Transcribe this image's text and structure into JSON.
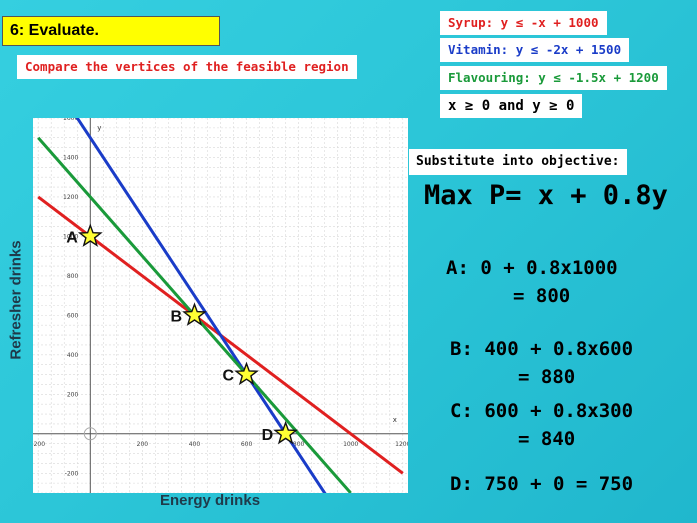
{
  "slide": {
    "title": "6: Evaluate.",
    "subtitle": "Compare the vertices of the feasible region"
  },
  "constraints": {
    "syrup": "Syrup:  y ≤ -x + 1000",
    "vitamin": "Vitamin:  y ≤ -2x + 1500",
    "flavouring": "Flavouring:  y ≤ -1.5x + 1200",
    "nonneg": "x ≥ 0 and y ≥ 0",
    "colors": {
      "syrup": "#e02020",
      "vitamin": "#1a3cc8",
      "flavouring": "#1a9a3a"
    }
  },
  "objective": {
    "heading": "Substitute into objective:",
    "function": "Max P= x + 0.8y"
  },
  "evaluations": {
    "a_line1": "A:  0 + 0.8x1000",
    "a_line2": "=  800",
    "b_line1": "B:  400 + 0.8x600",
    "b_line2": "=  880",
    "c_line1": "C:  600 + 0.8x300",
    "c_line2": "=  840",
    "d_line1": "D: 750 + 0  =  750"
  },
  "graph": {
    "y_axis_label": "Refresher drinks",
    "x_axis_label": "Energy drinks",
    "y_axis_symbol": "y",
    "x_axis_symbol": "x",
    "x_ticks": [
      "-200",
      "200",
      "400",
      "600",
      "800",
      "1000",
      "1200"
    ],
    "y_ticks": [
      "-200",
      "200",
      "400",
      "600",
      "800",
      "1000",
      "1200",
      "1400",
      "1600"
    ],
    "vertices": [
      {
        "label": "A",
        "x": 0,
        "y": 1000
      },
      {
        "label": "B",
        "x": 400,
        "y": 600
      },
      {
        "label": "C",
        "x": 600,
        "y": 300
      },
      {
        "label": "D",
        "x": 750,
        "y": 0
      }
    ]
  },
  "chart_data": {
    "type": "line",
    "title": "",
    "xlabel": "Energy drinks",
    "ylabel": "Refresher drinks",
    "xlim": [
      -220,
      1220
    ],
    "ylim": [
      -300,
      1600
    ],
    "grid": true,
    "series": [
      {
        "name": "Syrup",
        "x": [
          -200,
          1200
        ],
        "y": [
          1200,
          -200
        ]
      },
      {
        "name": "Vitamin",
        "x": [
          -200,
          925
        ],
        "y": [
          1900,
          -350
        ]
      },
      {
        "name": "Flavouring",
        "x": [
          -200,
          1000
        ],
        "y": [
          1500,
          -300
        ]
      }
    ],
    "points": [
      {
        "label": "A",
        "x": 0,
        "y": 1000
      },
      {
        "label": "B",
        "x": 400,
        "y": 600
      },
      {
        "label": "C",
        "x": 600,
        "y": 300
      },
      {
        "label": "D",
        "x": 750,
        "y": 0
      }
    ]
  }
}
